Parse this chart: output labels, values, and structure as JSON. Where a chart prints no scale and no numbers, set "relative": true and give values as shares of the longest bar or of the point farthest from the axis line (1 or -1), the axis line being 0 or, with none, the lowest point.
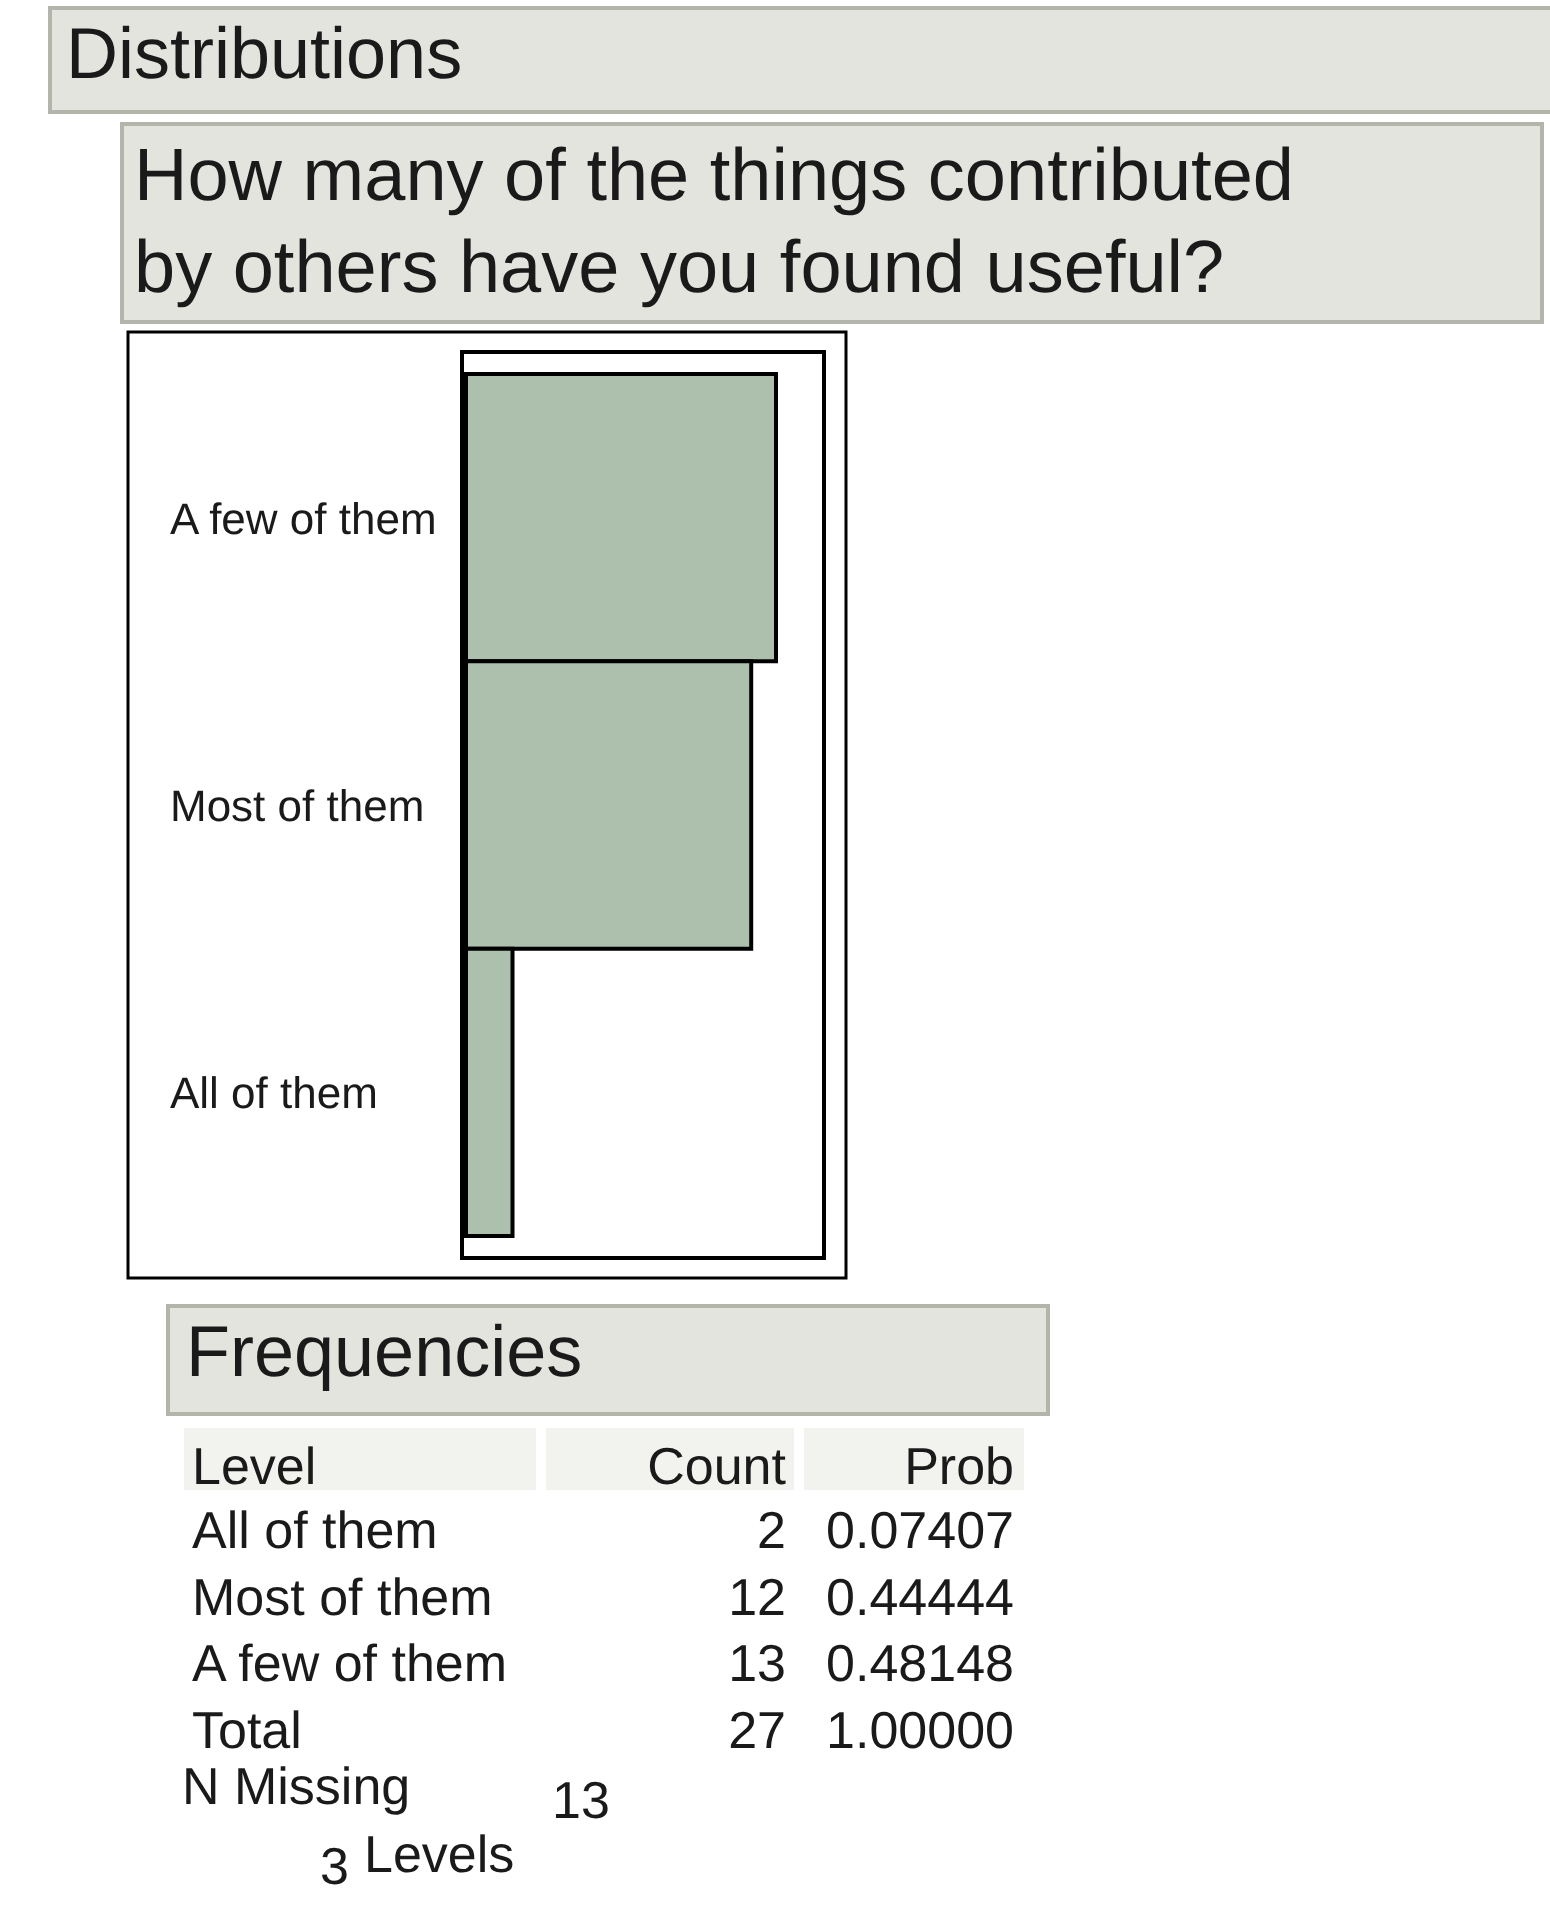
{
  "chart_data": {
    "type": "bar",
    "orientation": "horizontal",
    "relative": true,
    "title": "Distributions",
    "subtitle": "How many of the things contributed by others have you found useful?",
    "categories": [
      "A few of them",
      "Most of them",
      "All of them"
    ],
    "values": [
      1,
      0.92,
      0.15
    ],
    "color": "#adc0ae",
    "tick_labels": "y",
    "annotations": [
      "Frequencies",
      "Level",
      "Count",
      "Prob",
      "All of them",
      "2",
      "0.07407",
      "Most of them",
      "12",
      "0.44444",
      "A few of them",
      "13",
      "0.48148",
      "Total",
      "27",
      "1.00000",
      "N Missing",
      "13",
      "3",
      "Levels"
    ]
  }
}
